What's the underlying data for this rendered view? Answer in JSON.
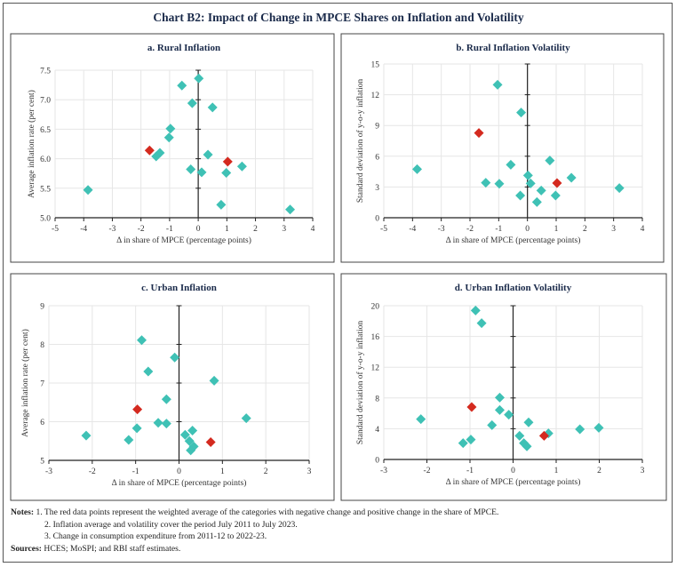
{
  "title": "Chart B2: Impact of Change in MPCE Shares on Inflation and Volatility",
  "colors": {
    "category": "#3fc1b5",
    "weighted_average": "#d42a1f"
  },
  "chart_data": [
    {
      "type": "scatter",
      "title": "a. Rural Inflation",
      "xlabel": "Δ in share of MPCE (percentage points)",
      "ylabel": "Average inflation rate (per cent)",
      "xlim": [
        -5,
        4
      ],
      "ylim": [
        5.0,
        7.5
      ],
      "xticks": [
        "-5",
        "-4",
        "-3",
        "-2",
        "-1",
        "0",
        "1",
        "2",
        "3",
        "4"
      ],
      "yticks": [
        "5.0",
        "5.5",
        "6.0",
        "6.5",
        "7.0",
        "7.5"
      ],
      "grid": true,
      "points": [
        [
          0.02,
          7.36
        ],
        [
          -0.57,
          7.24
        ],
        [
          -0.21,
          6.94
        ],
        [
          0.5,
          6.87
        ],
        [
          -0.97,
          6.51
        ],
        [
          -1.02,
          6.36
        ],
        [
          -1.34,
          6.1
        ],
        [
          -1.47,
          6.04
        ],
        [
          0.34,
          6.07
        ],
        [
          1.53,
          5.87
        ],
        [
          -0.26,
          5.82
        ],
        [
          0.12,
          5.77
        ],
        [
          0.98,
          5.76
        ],
        [
          -3.85,
          5.47
        ],
        [
          0.8,
          5.22
        ],
        [
          3.21,
          5.14
        ]
      ],
      "weighted_average_points": [
        [
          -1.7,
          6.14
        ],
        [
          1.03,
          5.95
        ]
      ]
    },
    {
      "type": "scatter",
      "title": "b. Rural Inflation Volatility",
      "xlabel": "Δ in share of MPCE (percentage points)",
      "ylabel": "Standard deviation of y-o-y inflation",
      "xlim": [
        -5,
        4
      ],
      "ylim": [
        0,
        15
      ],
      "xticks": [
        "-5",
        "-4",
        "-3",
        "-2",
        "-1",
        "0",
        "1",
        "2",
        "3",
        "4"
      ],
      "yticks": [
        "0",
        "3",
        "6",
        "9",
        "12",
        "15"
      ],
      "grid": true,
      "points": [
        [
          -1.04,
          12.97
        ],
        [
          -0.22,
          10.26
        ],
        [
          -3.84,
          4.74
        ],
        [
          -0.58,
          5.17
        ],
        [
          0.78,
          5.58
        ],
        [
          0.02,
          4.13
        ],
        [
          1.53,
          3.9
        ],
        [
          -1.45,
          3.41
        ],
        [
          -0.98,
          3.32
        ],
        [
          0.11,
          3.35
        ],
        [
          0.48,
          2.66
        ],
        [
          3.2,
          2.89
        ],
        [
          -0.25,
          2.17
        ],
        [
          0.98,
          2.17
        ],
        [
          0.33,
          1.53
        ]
      ],
      "weighted_average_points": [
        [
          -1.69,
          8.27
        ],
        [
          1.03,
          3.38
        ]
      ]
    },
    {
      "type": "scatter",
      "title": "c. Urban Inflation",
      "xlabel": "Δ in share of MPCE (percentage points)",
      "ylabel": "Average inflation rate (per cent)",
      "xlim": [
        -3,
        3
      ],
      "ylim": [
        5,
        9
      ],
      "xticks": [
        "-3",
        "-2",
        "-1",
        "0",
        "1",
        "2",
        "3"
      ],
      "yticks": [
        "5",
        "6",
        "7",
        "8",
        "9"
      ],
      "grid": true,
      "points": [
        [
          -0.86,
          8.11
        ],
        [
          -0.1,
          7.66
        ],
        [
          -0.71,
          7.3
        ],
        [
          0.81,
          7.06
        ],
        [
          -0.29,
          6.58
        ],
        [
          1.55,
          6.09
        ],
        [
          -0.48,
          5.97
        ],
        [
          -0.29,
          5.95
        ],
        [
          -0.97,
          5.83
        ],
        [
          0.31,
          5.77
        ],
        [
          -2.14,
          5.64
        ],
        [
          0.14,
          5.66
        ],
        [
          -1.16,
          5.53
        ],
        [
          0.24,
          5.5
        ],
        [
          0.34,
          5.36
        ],
        [
          0.27,
          5.26
        ]
      ],
      "weighted_average_points": [
        [
          -0.96,
          6.32
        ],
        [
          0.73,
          5.47
        ]
      ]
    },
    {
      "type": "scatter",
      "title": "d. Urban Inflation Volatility",
      "xlabel": "Δ in share of MPCE (percentage points)",
      "ylabel": "Standard deviation of y-o-y inflation",
      "xlim": [
        -3,
        3
      ],
      "ylim": [
        0,
        20
      ],
      "xticks": [
        "-3",
        "-2",
        "-1",
        "0",
        "1",
        "2",
        "3"
      ],
      "yticks": [
        "0",
        "4",
        "8",
        "12",
        "16",
        "20"
      ],
      "grid": true,
      "points": [
        [
          -0.87,
          19.38
        ],
        [
          -0.73,
          17.73
        ],
        [
          -0.31,
          8.05
        ],
        [
          -0.31,
          6.43
        ],
        [
          -0.1,
          5.82
        ],
        [
          -2.14,
          5.24
        ],
        [
          0.36,
          4.82
        ],
        [
          -0.49,
          4.47
        ],
        [
          0.82,
          3.39
        ],
        [
          1.55,
          3.93
        ],
        [
          1.99,
          4.12
        ],
        [
          0.15,
          3.08
        ],
        [
          -0.98,
          2.58
        ],
        [
          -1.16,
          2.12
        ],
        [
          0.25,
          2.12
        ],
        [
          0.32,
          1.7
        ]
      ],
      "weighted_average_points": [
        [
          -0.96,
          6.82
        ],
        [
          0.72,
          3.08
        ]
      ]
    }
  ],
  "notes": {
    "label": "Notes:",
    "items": [
      "1. The red data points represent the weighted average of the categories with negative change and positive change in the share of MPCE.",
      "2. Inflation average and volatility cover the period July 2011 to July 2023.",
      "3. Change in consumption expenditure from 2011-12 to 2022-23."
    ],
    "sources_label": "Sources:",
    "sources": "HCES; MoSPI; and RBI staff estimates."
  }
}
